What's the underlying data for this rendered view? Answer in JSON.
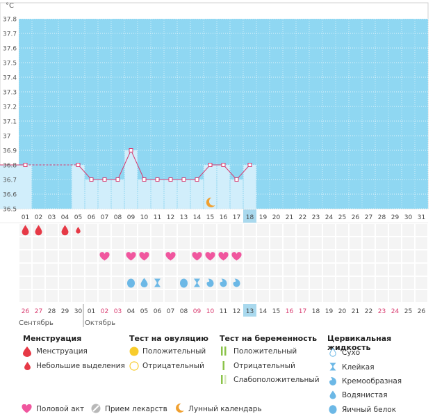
{
  "chart_data": {
    "type": "line",
    "y_unit": "°C",
    "ylim": [
      36.5,
      37.8
    ],
    "y_ticks": [
      "36.5",
      "36.6",
      "36.7",
      "36.8",
      "36.9",
      "37",
      "37.1",
      "37.2",
      "37.3",
      "37.4",
      "37.5",
      "37.6",
      "37.7",
      "37.8"
    ],
    "cycle_days": [
      "01",
      "02",
      "03",
      "04",
      "05",
      "06",
      "07",
      "08",
      "09",
      "10",
      "11",
      "12",
      "13",
      "14",
      "15",
      "16",
      "17",
      "18",
      "19",
      "20",
      "21",
      "22",
      "23",
      "24",
      "25",
      "26",
      "27",
      "28",
      "29",
      "30",
      "31"
    ],
    "current_day": "18",
    "temperatures": [
      36.8,
      null,
      null,
      null,
      36.8,
      36.7,
      36.7,
      36.7,
      36.9,
      36.7,
      36.7,
      36.7,
      36.7,
      36.7,
      36.8,
      36.8,
      36.7,
      36.8,
      null,
      null,
      null,
      null,
      null,
      null,
      null,
      null,
      null,
      null,
      null,
      null,
      null
    ],
    "dashed_interpolation": [
      [
        1,
        5
      ]
    ],
    "moon_day": "15",
    "menstruation_row": [
      {
        "day": "01",
        "kind": "heavy"
      },
      {
        "day": "02",
        "kind": "heavy"
      },
      {
        "day": "04",
        "kind": "heavy"
      },
      {
        "day": "05",
        "kind": "light"
      }
    ],
    "intercourse_days": [
      "07",
      "09",
      "10",
      "12",
      "14",
      "15",
      "16",
      "17"
    ],
    "cervical_row": [
      {
        "day": "09",
        "kind": "eggwhite"
      },
      {
        "day": "10",
        "kind": "watery"
      },
      {
        "day": "11",
        "kind": "sticky"
      },
      {
        "day": "13",
        "kind": "eggwhite"
      },
      {
        "day": "14",
        "kind": "sticky"
      },
      {
        "day": "15",
        "kind": "creamy"
      },
      {
        "day": "16",
        "kind": "creamy"
      },
      {
        "day": "17",
        "kind": "creamy"
      }
    ],
    "calendar_dates": [
      "26",
      "27",
      "28",
      "29",
      "30",
      "01",
      "02",
      "03",
      "04",
      "05",
      "06",
      "07",
      "08",
      "09",
      "10",
      "11",
      "12",
      "13",
      "14",
      "15",
      "16",
      "17",
      "18",
      "19",
      "20",
      "21",
      "22",
      "23",
      "24",
      "25",
      "26"
    ],
    "weekend_dates_index": [
      0,
      1,
      6,
      7,
      13,
      14,
      20,
      21,
      27,
      28
    ],
    "today_index": 17,
    "month_labels": [
      {
        "label": "Сентябрь",
        "start_index": 0
      },
      {
        "label": "Октябрь",
        "start_index": 5
      }
    ]
  },
  "colors": {
    "sky": "#8fd7f2",
    "bar": "#d1eefb",
    "line": "#d8396e",
    "weekend": "#d8396e",
    "pink": "#f0569e",
    "drop": "#e63946",
    "fluid": "#6cb8e6",
    "today_bg": "#a9d9ee",
    "moon": "#f0a030"
  },
  "legend": {
    "menstruation": {
      "title": "Менструация",
      "items": [
        "Менструация",
        "Небольшие выделения"
      ]
    },
    "ovulation": {
      "title": "Тест на овуляцию",
      "items": [
        "Положительный",
        "Отрицательный"
      ]
    },
    "pregnancy": {
      "title": "Тест на беременность",
      "items": [
        "Положительный",
        "Отрицательный",
        "Слабоположительный"
      ]
    },
    "cervical": {
      "title": "Цервикальная жидкость",
      "items": [
        "Сухо",
        "Клейкая",
        "Кремообразная",
        "Водянистая",
        "Яичный белок"
      ]
    },
    "bottom": [
      "Половой акт",
      "Прием лекарств",
      "Лунный календарь"
    ]
  }
}
